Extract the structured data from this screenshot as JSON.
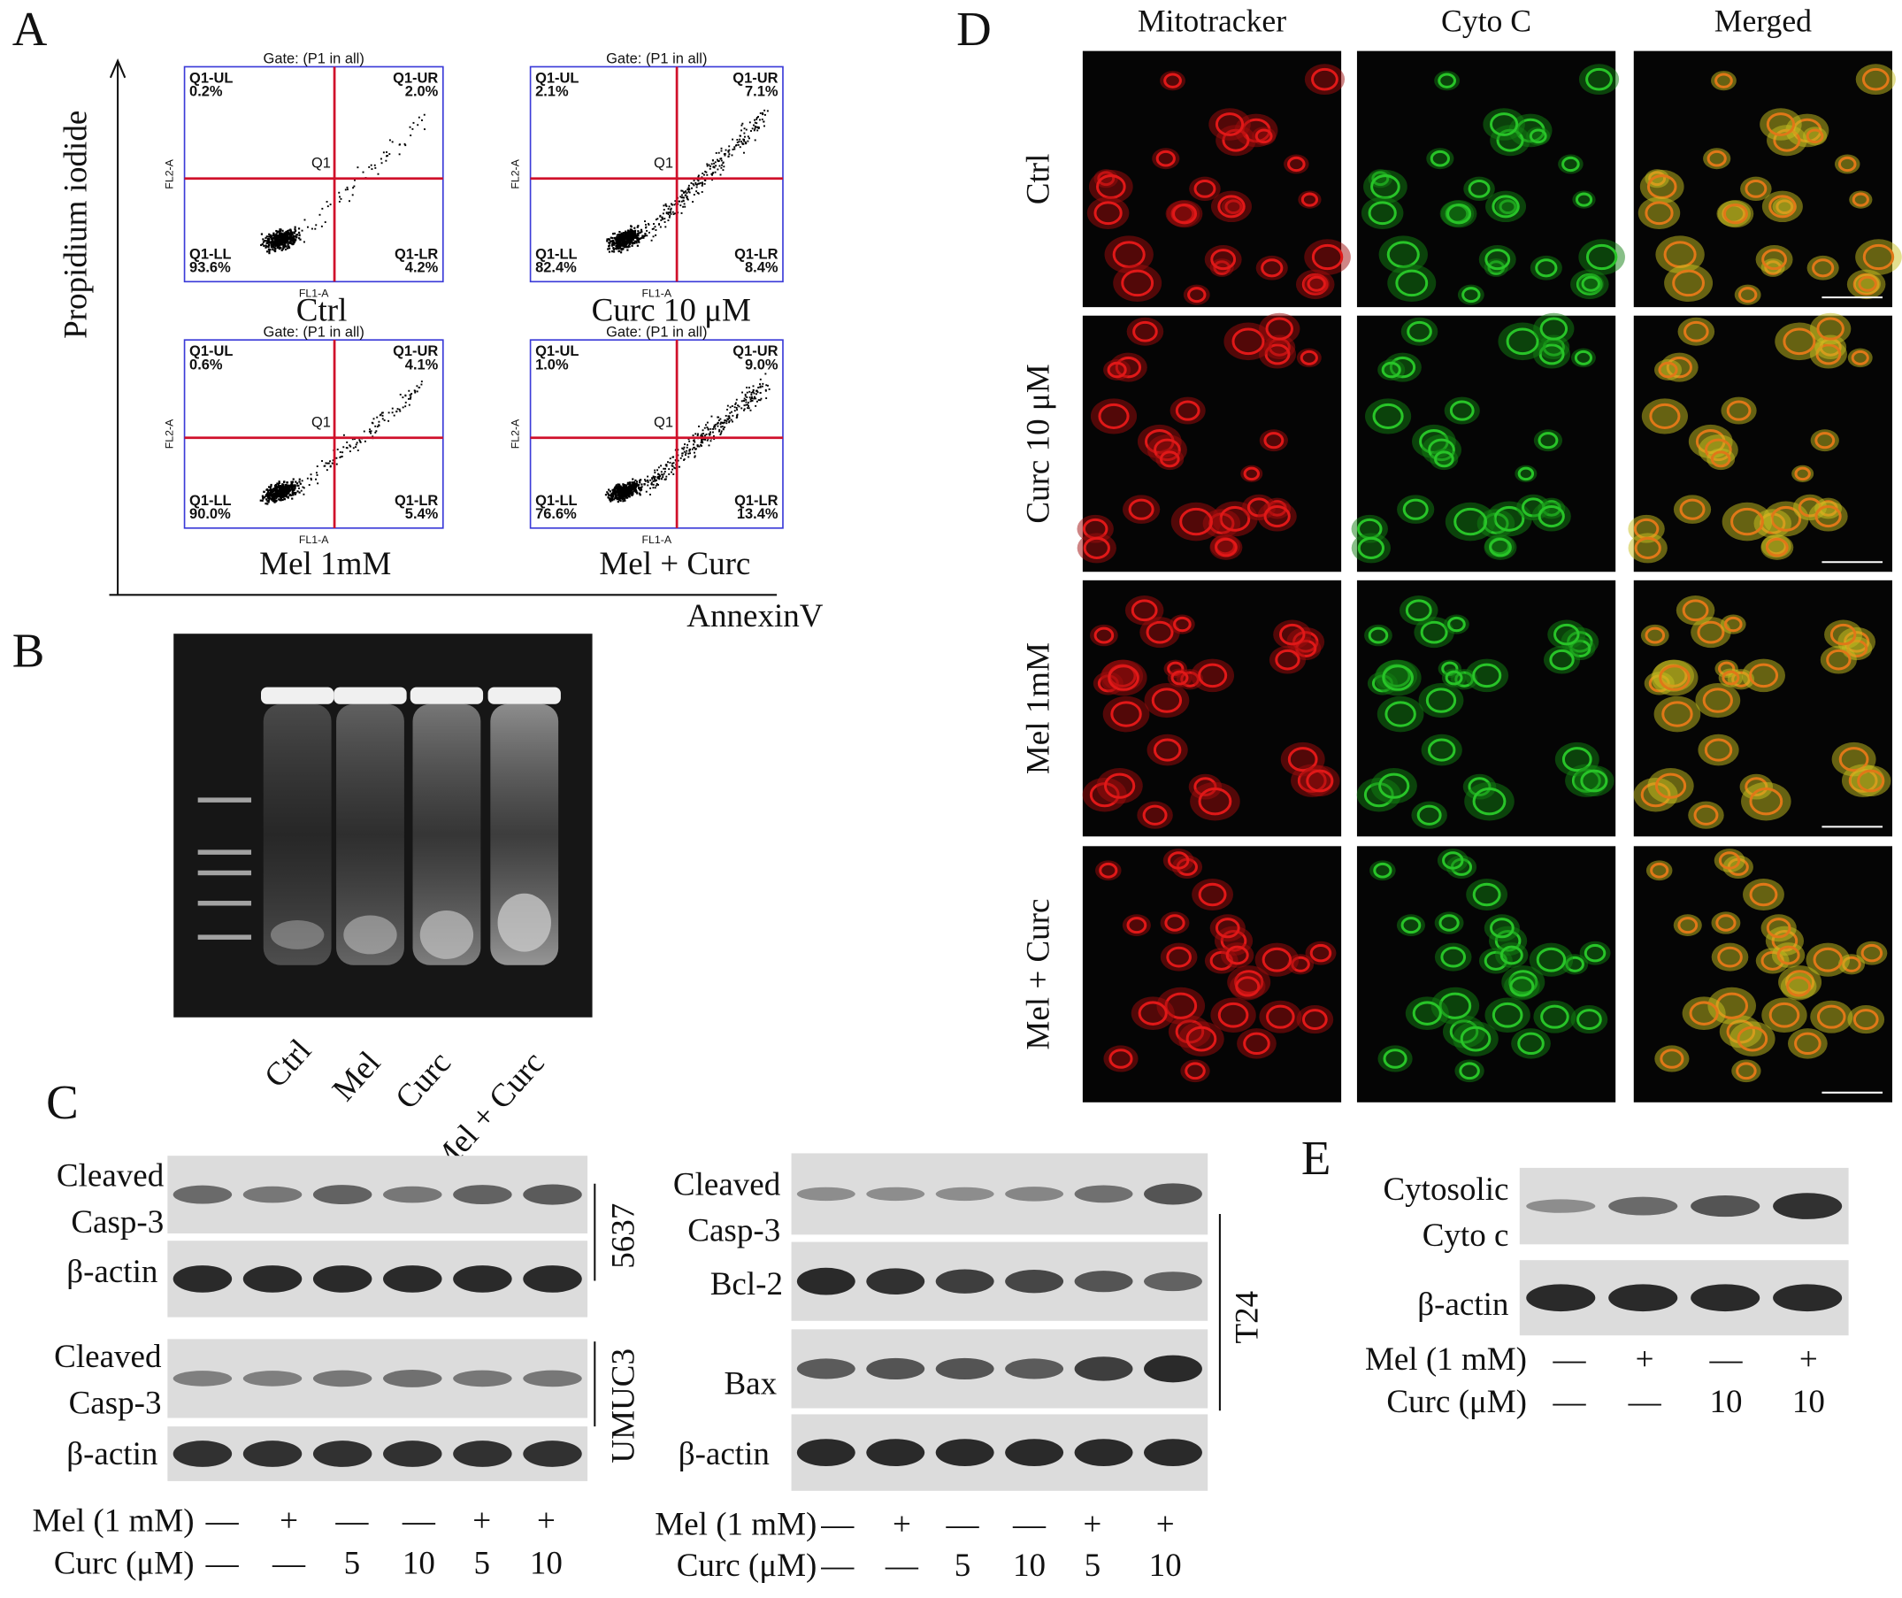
{
  "A": {
    "label": "A",
    "y_axis": "Propidium iodide",
    "x_axis": "AnnexinV",
    "quadrant_names": [
      "Q1-UL",
      "Q1-UR",
      "Q1-LL",
      "Q1-LR"
    ],
    "center_label": "Q1",
    "x_channel": "FL1-A",
    "y_channel": "FL2-A",
    "plots": [
      {
        "caption": "Ctrl",
        "gate": "Gate: (P1 in all)",
        "quadrants": [
          "0.2%",
          "2.0%",
          "93.6%",
          "4.2%"
        ]
      },
      {
        "caption": "Curc 10 μM",
        "gate": "Gate: (P1 in all)",
        "quadrants": [
          "2.1%",
          "7.1%",
          "82.4%",
          "8.4%"
        ]
      },
      {
        "caption": "Mel 1mM",
        "gate": "Gate: (P1 in all)",
        "quadrants": [
          "0.6%",
          "4.1%",
          "90.0%",
          "5.4%"
        ]
      },
      {
        "caption": "Mel + Curc",
        "gate": "Gate: (P1 in all)",
        "quadrants": [
          "1.0%",
          "9.0%",
          "76.6%",
          "13.4%"
        ]
      }
    ]
  },
  "B": {
    "label": "B",
    "lanes": [
      "Ctrl",
      "Mel",
      "Curc",
      "Mel + Curc"
    ]
  },
  "C": {
    "label": "C",
    "left": {
      "blots": [
        [
          "Cleaved",
          "Casp-3"
        ],
        [
          "β-actin"
        ],
        [
          "Cleaved",
          "Casp-3"
        ],
        [
          "β-actin"
        ]
      ],
      "cell_lines": [
        "5637",
        "UMUC3"
      ],
      "conditions": [
        {
          "name": "Mel (1 mM)",
          "values": [
            "—",
            "+",
            "—",
            "—",
            "+",
            "+"
          ]
        },
        {
          "name": "Curc (μM)",
          "values": [
            "—",
            "—",
            "5",
            "10",
            "5",
            "10"
          ]
        }
      ]
    },
    "right": {
      "blots": [
        [
          "Cleaved",
          "Casp-3"
        ],
        [
          "Bcl-2"
        ],
        [
          "Bax"
        ],
        [
          "β-actin"
        ]
      ],
      "cell_line": "T24",
      "conditions": [
        {
          "name": "Mel (1 mM)",
          "values": [
            "—",
            "+",
            "—",
            "—",
            "+",
            "+"
          ]
        },
        {
          "name": "Curc (μM)",
          "values": [
            "—",
            "—",
            "5",
            "10",
            "5",
            "10"
          ]
        }
      ]
    }
  },
  "D": {
    "label": "D",
    "columns": [
      "Mitotracker",
      "Cyto C",
      "Merged"
    ],
    "rows": [
      "Ctrl",
      "Curc 10 μM",
      "Mel 1mM",
      "Mel + Curc"
    ]
  },
  "E": {
    "label": "E",
    "blots": [
      [
        "Cytosolic",
        "Cyto c"
      ],
      [
        "β-actin"
      ]
    ],
    "conditions": [
      {
        "name": "Mel (1 mM)",
        "values": [
          "—",
          "+",
          "—",
          "+"
        ]
      },
      {
        "name": "Curc (μM)",
        "values": [
          "—",
          "—",
          "10",
          "10"
        ]
      }
    ]
  }
}
